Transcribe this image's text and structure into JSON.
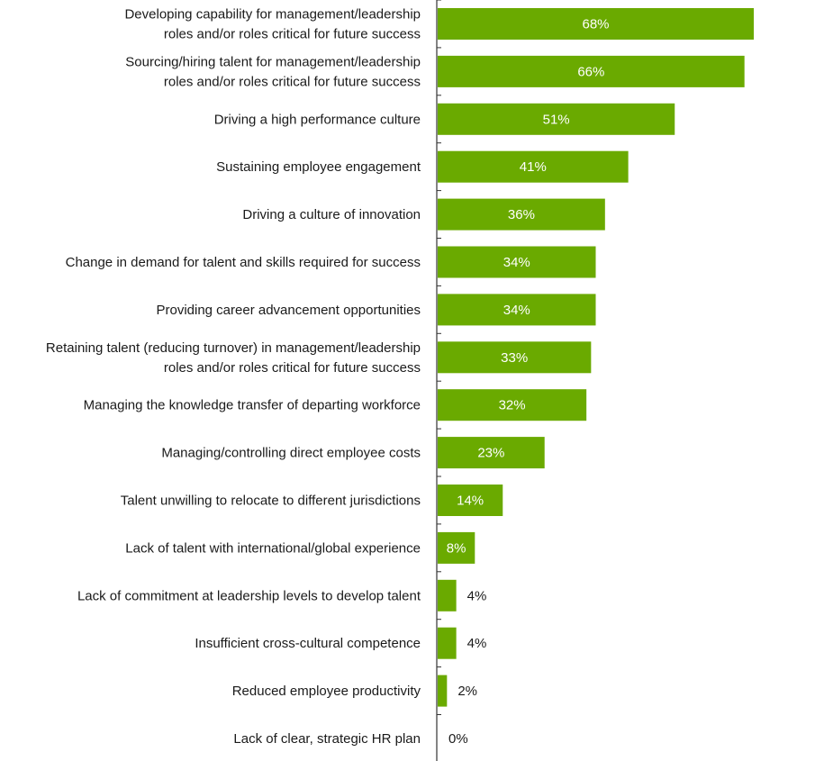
{
  "chart_data": {
    "type": "bar",
    "orientation": "horizontal",
    "categories": [
      "Developing capability for management/leadership\nroles and/or roles critical for future success",
      "Sourcing/hiring talent for management/leadership\nroles and/or roles critical for future success",
      "Driving a high performance culture",
      "Sustaining employee engagement",
      "Driving a culture of innovation",
      "Change in demand for talent and skills required for success",
      "Providing career advancement opportunities",
      "Retaining talent (reducing turnover) in management/leadership\nroles and/or roles critical for future success",
      "Managing the knowledge transfer of departing workforce",
      "Managing/controlling direct employee costs",
      "Talent unwilling to relocate to different jurisdictions",
      "Lack of talent with international/global experience",
      "Lack of commitment at leadership levels to develop talent",
      "Insufficient cross-cultural competence",
      "Reduced employee productivity",
      "Lack of clear, strategic HR plan"
    ],
    "values": [
      68,
      66,
      51,
      41,
      36,
      34,
      34,
      33,
      32,
      23,
      14,
      8,
      4,
      4,
      2,
      0
    ],
    "value_labels": [
      "68%",
      "66%",
      "51%",
      "41%",
      "36%",
      "34%",
      "34%",
      "33%",
      "32%",
      "23%",
      "14%",
      "8%",
      "4%",
      "4%",
      "2%",
      "0%"
    ],
    "xlim": [
      0,
      70
    ],
    "grid": false,
    "colors": {
      "bar": "#6aaa00",
      "axis": "#333333",
      "label": "#1a1a1a",
      "value_in": "#ffffff",
      "value_out": "#1a1a1a"
    }
  }
}
